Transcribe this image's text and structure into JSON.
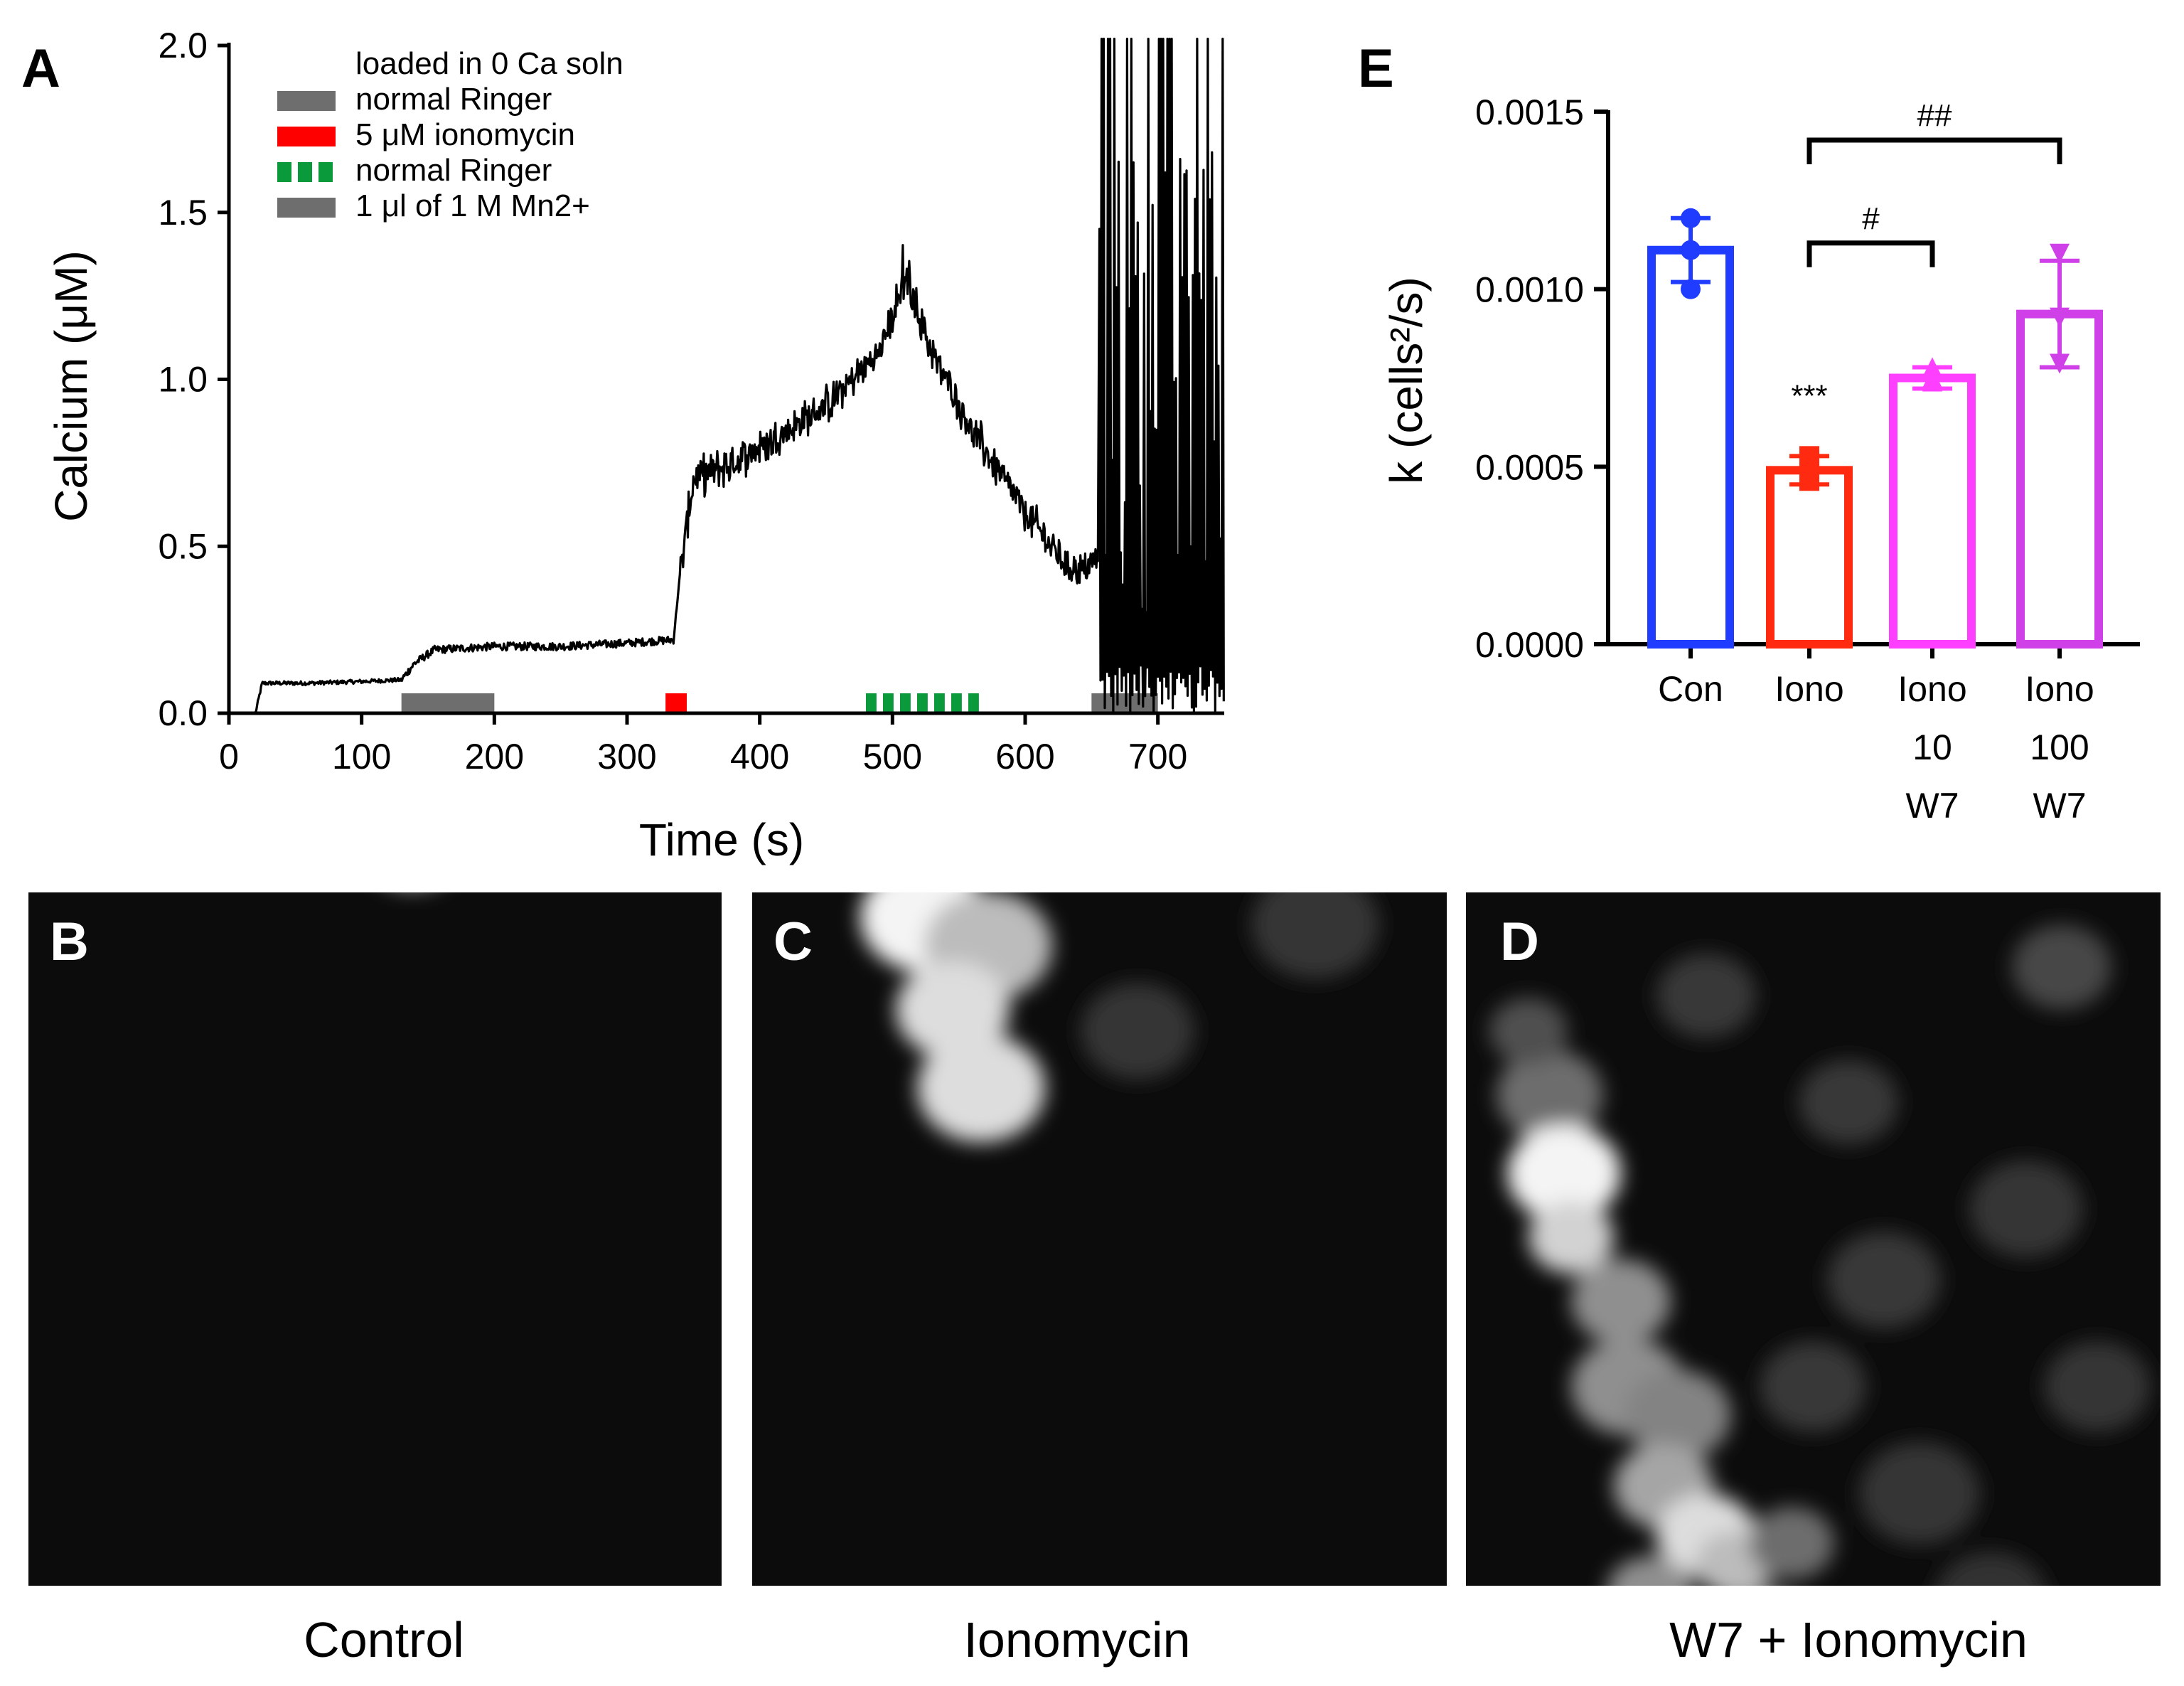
{
  "panels": {
    "A": "A",
    "B": "B",
    "C": "C",
    "D": "D",
    "E": "E"
  },
  "captions": {
    "B": "Control",
    "C": "Ionomycin",
    "D": "W7 + Ionomycin"
  },
  "chart_data": [
    {
      "panel": "A",
      "type": "line",
      "xlabel": "Time (s)",
      "ylabel": "Calcium (μM)",
      "xlim": [
        0,
        750
      ],
      "ylim": [
        0,
        2.0
      ],
      "xticks": [
        0,
        100,
        200,
        300,
        400,
        500,
        600,
        700
      ],
      "yticks": [
        "0.0",
        "0.5",
        "1.0",
        "1.5",
        "2.0"
      ],
      "grid": false,
      "legend_position": "top-left",
      "legend": [
        {
          "label": "loaded in 0 Ca soln",
          "color": "",
          "style": "none"
        },
        {
          "label": "normal Ringer",
          "color": "#6e6e6e",
          "style": "solid"
        },
        {
          "label": "5 μM ionomycin",
          "color": "#ff0000",
          "style": "solid"
        },
        {
          "label": "normal Ringer",
          "color": "#0a9a3c",
          "style": "dashed"
        },
        {
          "label": "1 μl of 1 M Mn2+",
          "color": "#6e6e6e",
          "style": "solid"
        }
      ],
      "application_bars": [
        {
          "start": 130,
          "end": 200,
          "color": "#6e6e6e",
          "style": "solid"
        },
        {
          "start": 329,
          "end": 345,
          "color": "#ff0000",
          "style": "solid"
        },
        {
          "start": 480,
          "end": 570,
          "color": "#0a9a3c",
          "style": "dashed"
        },
        {
          "start": 650,
          "end": 700,
          "color": "#6e6e6e",
          "style": "solid"
        }
      ],
      "trace_color": "#000000",
      "trace_keypoints": [
        [
          20,
          0.0
        ],
        [
          25,
          0.09
        ],
        [
          60,
          0.09
        ],
        [
          100,
          0.095
        ],
        [
          130,
          0.1
        ],
        [
          140,
          0.15
        ],
        [
          155,
          0.19
        ],
        [
          200,
          0.2
        ],
        [
          250,
          0.2
        ],
        [
          300,
          0.21
        ],
        [
          335,
          0.22
        ],
        [
          340,
          0.42
        ],
        [
          350,
          0.7
        ],
        [
          380,
          0.75
        ],
        [
          410,
          0.82
        ],
        [
          450,
          0.92
        ],
        [
          470,
          1.0
        ],
        [
          490,
          1.08
        ],
        [
          510,
          1.3
        ],
        [
          530,
          1.08
        ],
        [
          560,
          0.85
        ],
        [
          600,
          0.6
        ],
        [
          630,
          0.45
        ],
        [
          645,
          0.42
        ],
        [
          660,
          0.5
        ]
      ],
      "spike_region": [
        650,
        750
      ]
    },
    {
      "panel": "E",
      "type": "bar",
      "ylabel": "k (cells²/s)",
      "ylim": [
        0,
        0.0015
      ],
      "yticks": [
        "0.0000",
        "0.0005",
        "0.0010",
        "0.0015"
      ],
      "categories": [
        [
          "Con"
        ],
        [
          "Iono"
        ],
        [
          "Iono",
          "10",
          "W7"
        ],
        [
          "Iono",
          "100",
          "W7"
        ]
      ],
      "values": [
        0.00111,
        0.00049,
        0.00075,
        0.00093
      ],
      "sd": [
        9e-05,
        4e-05,
        3e-05,
        0.00015
      ],
      "points": [
        [
          0.0012,
          0.00111,
          0.001
        ],
        [
          0.00053,
          0.0005,
          0.00046
        ],
        [
          0.00078,
          0.00075,
          0.00074
        ],
        [
          0.0011,
          0.00092,
          0.00079
        ]
      ],
      "colors": [
        "#1f3cff",
        "#ff2a10",
        "#ff3fff",
        "#d040e8"
      ],
      "markers": [
        "circle",
        "square",
        "triangle-up",
        "triangle-down"
      ],
      "annotations": [
        {
          "text": "***",
          "category": 1
        }
      ],
      "brackets": [
        {
          "from": 1,
          "to": 2,
          "label": "#"
        },
        {
          "from": 1,
          "to": 3,
          "label": "##"
        }
      ]
    }
  ],
  "images": {
    "B": {
      "cells": [
        [
          150,
          140,
          95,
          0.45
        ],
        [
          235,
          190,
          80,
          0.4
        ],
        [
          155,
          300,
          100,
          0.45
        ],
        [
          245,
          320,
          75,
          0.38
        ],
        [
          300,
          250,
          70,
          0.3
        ],
        [
          175,
          430,
          100,
          0.5
        ],
        [
          270,
          470,
          85,
          0.4
        ],
        [
          140,
          560,
          70,
          0.85
        ],
        [
          215,
          600,
          95,
          0.6
        ],
        [
          350,
          560,
          80,
          0.35
        ],
        [
          300,
          680,
          90,
          0.55
        ],
        [
          390,
          770,
          75,
          0.4
        ],
        [
          460,
          820,
          70,
          0.3
        ],
        [
          420,
          880,
          80,
          0.45
        ],
        [
          450,
          950,
          90,
          0.6
        ],
        [
          520,
          1050,
          60,
          0.3
        ],
        [
          470,
          1060,
          80,
          0.5
        ],
        [
          540,
          1130,
          90,
          0.9
        ],
        [
          580,
          1190,
          70,
          0.6
        ],
        [
          500,
          1000,
          55,
          0.3
        ],
        [
          200,
          900,
          0,
          0
        ],
        [
          600,
          900,
          75,
          0.13
        ],
        [
          700,
          700,
          80,
          0.1
        ],
        [
          800,
          450,
          85,
          0.1
        ],
        [
          850,
          900,
          80,
          0.1
        ],
        [
          700,
          300,
          75,
          0.1
        ],
        [
          900,
          1100,
          70,
          0.08
        ],
        [
          650,
          1050,
          60,
          0.1
        ]
      ]
    },
    "C": {
      "cells": [
        [
          1520,
          200,
          85,
          0.85
        ],
        [
          1600,
          310,
          80,
          0.6
        ],
        [
          1400,
          490,
          60,
          0.9
        ],
        [
          1410,
          560,
          70,
          0.8
        ],
        [
          1420,
          680,
          70,
          0.85
        ],
        [
          1470,
          830,
          55,
          0.6
        ],
        [
          1400,
          920,
          70,
          0.55
        ],
        [
          1350,
          1040,
          90,
          0.9
        ],
        [
          1340,
          1180,
          70,
          0.7
        ],
        [
          1300,
          1290,
          90,
          0.95
        ],
        [
          1390,
          1330,
          90,
          0.7
        ],
        [
          1340,
          1420,
          80,
          0.85
        ],
        [
          1380,
          1530,
          90,
          0.85
        ],
        [
          1600,
          700,
          85,
          0.12
        ],
        [
          1800,
          900,
          95,
          0.12
        ],
        [
          1700,
          1100,
          90,
          0.1
        ],
        [
          1900,
          600,
          80,
          0.1
        ],
        [
          1850,
          1300,
          90,
          0.1
        ],
        [
          1600,
          1450,
          80,
          0.1
        ],
        [
          1950,
          1050,
          85,
          0.09
        ],
        [
          1500,
          1050,
          70,
          0.15
        ],
        [
          1850,
          400,
          70,
          0.1
        ]
      ]
    },
    "D": {
      "cells": [
        [
          2900,
          1360,
          70,
          0.18
        ],
        [
          2180,
          1540,
          75,
          0.35
        ],
        [
          2200,
          1650,
          80,
          0.95
        ],
        [
          2210,
          1740,
          60,
          0.8
        ],
        [
          2280,
          1830,
          70,
          0.5
        ],
        [
          2290,
          1950,
          80,
          0.5
        ],
        [
          2360,
          1990,
          75,
          0.45
        ],
        [
          2340,
          2090,
          70,
          0.6
        ],
        [
          2400,
          2160,
          70,
          0.85
        ],
        [
          2320,
          2240,
          60,
          0.5
        ],
        [
          2440,
          2200,
          55,
          0.7
        ],
        [
          2480,
          2290,
          65,
          0.45
        ],
        [
          2520,
          2170,
          60,
          0.35
        ],
        [
          2550,
          1950,
          75,
          0.12
        ],
        [
          2650,
          1800,
          80,
          0.12
        ],
        [
          2700,
          2100,
          85,
          0.1
        ],
        [
          2850,
          1700,
          80,
          0.1
        ],
        [
          2950,
          1950,
          75,
          0.1
        ],
        [
          2800,
          2250,
          80,
          0.09
        ],
        [
          2600,
          1550,
          70,
          0.12
        ],
        [
          2400,
          1400,
          70,
          0.12
        ],
        [
          2150,
          1450,
          55,
          0.22
        ]
      ]
    }
  }
}
